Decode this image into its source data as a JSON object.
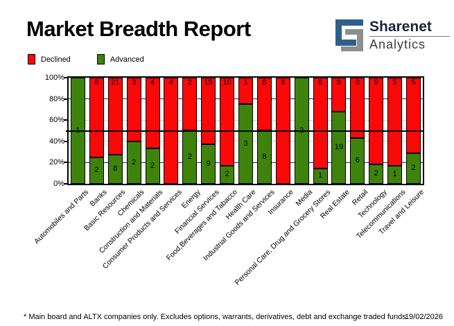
{
  "header": {
    "title": "Market Breadth Report",
    "logo": {
      "line1": "Sharenet",
      "line2": "Analytics",
      "icon_blue": "#2d5f8d",
      "icon_gray": "#8e8e8e"
    }
  },
  "legend": {
    "declined_label": "Declined",
    "advanced_label": "Advanced",
    "declined_color": "#fb0808",
    "advanced_color": "#3e830b"
  },
  "chart_data": {
    "type": "bar",
    "stacked": true,
    "unit": "percent_of_total",
    "title": "Market Breadth Report",
    "categories": [
      "Automobiles and Parts",
      "Banks",
      "Basic Resources",
      "Chemicals",
      "Construction and Materials",
      "Consumer Products and Services",
      "Energy",
      "Financial Services",
      "Food,Beverages and Tabacco",
      "Health Care",
      "Industrial Goods and Services",
      "Insurance",
      "Media",
      "Personal Care, Drug and Grocery Stores",
      "Real Estate",
      "Retail",
      "Technology",
      "Telecommunications",
      "Travel and Leisure"
    ],
    "series": [
      {
        "name": "Declined",
        "color": "#fb0808",
        "values": [
          0,
          6,
          21,
          3,
          4,
          4,
          2,
          15,
          10,
          1,
          8,
          6,
          0,
          6,
          9,
          8,
          9,
          5,
          5
        ]
      },
      {
        "name": "Advanced",
        "color": "#3e830b",
        "values": [
          1,
          2,
          8,
          2,
          2,
          0,
          2,
          9,
          2,
          3,
          8,
          0,
          2,
          1,
          19,
          6,
          2,
          1,
          2
        ]
      }
    ],
    "y_axis": {
      "range": [
        0,
        100
      ],
      "ticks": [
        {
          "value": 100,
          "label": "100%"
        },
        {
          "value": 80,
          "label": "80%"
        },
        {
          "value": 60,
          "label": "60%"
        },
        {
          "value": 40,
          "label": "40%"
        },
        {
          "value": 20,
          "label": "20%"
        },
        {
          "value": 0,
          "label": "0%"
        }
      ]
    },
    "grid": {
      "navy_lines": [
        80,
        20
      ],
      "gray_lines": [
        60,
        40
      ],
      "black_lines": [
        50
      ],
      "navy_color": "#202090",
      "gray_color": "#c9c9c9",
      "black_color": "#000000"
    },
    "legend_position": "top-left"
  },
  "footer": {
    "note": "* Main board and ALTX companies only. Excludes options, warrants, derivatives, debt and exchange traded funds",
    "date": "19/02/2026"
  }
}
